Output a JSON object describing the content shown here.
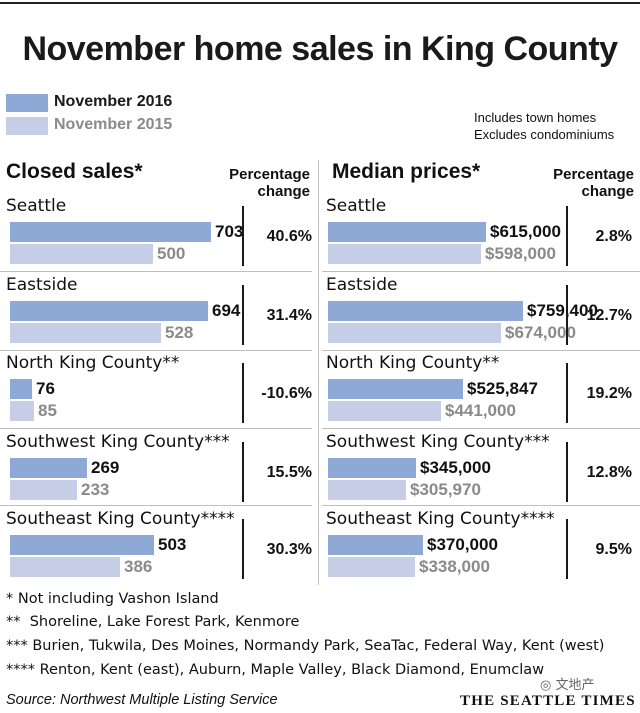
{
  "title": "November home sales in King County",
  "legend": [
    {
      "label": "November 2016",
      "color": "#8ea9d6"
    },
    {
      "label": "November 2015",
      "color": "#c6cde6"
    }
  ],
  "notes": [
    "Includes town homes",
    "Excludes condominiums"
  ],
  "left_panel": {
    "heading": "Closed sales*",
    "pct_heading_1": "Percentage",
    "pct_heading_2": "change"
  },
  "right_panel": {
    "heading": "Median prices*",
    "pct_heading_1": "Percentage",
    "pct_heading_2": "change"
  },
  "chart_data": [
    {
      "type": "bar",
      "title": "Closed sales*",
      "categories": [
        "Seattle",
        "Eastside",
        "North King County**",
        "Southwest King County***",
        "Southeast King County****"
      ],
      "series": [
        {
          "name": "November 2016",
          "values": [
            703,
            694,
            76,
            269,
            503
          ],
          "labels": [
            "703",
            "694",
            "76",
            "269",
            "503"
          ]
        },
        {
          "name": "November 2015",
          "values": [
            500,
            528,
            85,
            233,
            386
          ],
          "labels": [
            "500",
            "528",
            "85",
            "233",
            "386"
          ]
        }
      ],
      "pct_change": [
        "40.6%",
        "31.4%",
        "-10.6%",
        "15.5%",
        "30.3%"
      ]
    },
    {
      "type": "bar",
      "title": "Median prices*",
      "categories": [
        "Seattle",
        "Eastside",
        "North King County**",
        "Southwest King County***",
        "Southeast King County****"
      ],
      "series": [
        {
          "name": "November 2016",
          "values": [
            615000,
            759400,
            525847,
            345000,
            370000
          ],
          "labels": [
            "$615,000",
            "$759,400",
            "$525,847",
            "$345,000",
            "$370,000"
          ]
        },
        {
          "name": "November 2015",
          "values": [
            598000,
            674000,
            441000,
            305970,
            338000
          ],
          "labels": [
            "$598,000",
            "$674,000",
            "$441,000",
            "$305,970",
            "$338,000"
          ]
        }
      ],
      "pct_change": [
        "2.8%",
        "12.7%",
        "19.2%",
        "12.8%",
        "9.5%"
      ]
    }
  ],
  "footnotes": [
    "* Not including Vashon Island",
    "**  Shoreline, Lake Forest Park, Kenmore",
    "*** Burien, Tukwila, Des Moines, Normandy Park, SeaTac, Federal Way, Kent (west)",
    "**** Renton, Kent (east), Auburn, Maple Valley, Black Diamond, Enumclaw"
  ],
  "source": "Source: Northwest Multiple Listing Service",
  "brand": "THE SEATTLE TIMES",
  "watermark": "文地产"
}
